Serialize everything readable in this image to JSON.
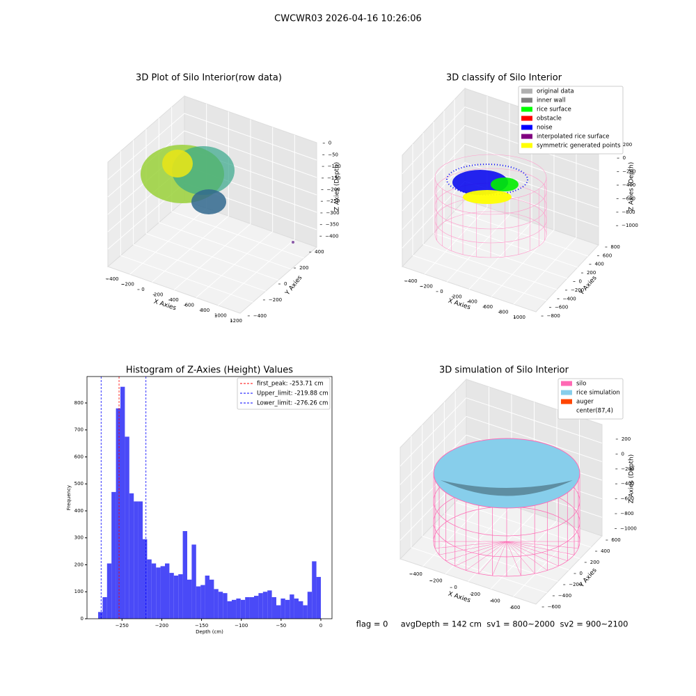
{
  "title": "CWCWR03 2026-04-16 10:26:06",
  "footer": "flag = 0     avgDepth = 142 cm  sv1 = 800~2000  sv2 = 900~2100",
  "chart_data": [
    {
      "type": "scatter3d",
      "title": "3D Plot of Silo Interior(row data)",
      "xlabel": "X Axies",
      "ylabel": "Y Axies",
      "zlabel": "Z Axies (Depth)",
      "xlim": [
        -480,
        1280
      ],
      "xticks": [
        {
          "value": -400,
          "label": "−400"
        },
        {
          "value": -200,
          "label": "−200"
        },
        0,
        200,
        400,
        600,
        800,
        1000,
        1200
      ],
      "ylim": [
        -480,
        480
      ],
      "yticks": [
        {
          "value": -400,
          "label": "−400"
        },
        {
          "value": -200,
          "label": "−200"
        },
        0,
        200,
        400
      ],
      "zlim": [
        -420,
        20
      ],
      "zticks": [
        0,
        {
          "value": -50,
          "label": "−50"
        },
        {
          "value": -100,
          "label": "−100"
        },
        {
          "value": -150,
          "label": "−150"
        },
        {
          "value": -200,
          "label": "−200"
        },
        {
          "value": -250,
          "label": "−250"
        },
        {
          "value": -300,
          "label": "−300"
        },
        {
          "value": -350,
          "label": "−350"
        },
        {
          "value": -400,
          "label": "−400"
        }
      ]
    },
    {
      "type": "scatter3d",
      "title": "3D classify of Silo Interior",
      "xlabel": "X Axies",
      "ylabel": "Y Axies",
      "zlabel": "Z Axies (Depth)",
      "xlim": [
        -480,
        1080
      ],
      "xticks": [
        {
          "value": -400,
          "label": "−400"
        },
        {
          "value": -200,
          "label": "−200"
        },
        0,
        200,
        400,
        600,
        800,
        1000
      ],
      "ylim": [
        -880,
        880
      ],
      "yticks": [
        {
          "value": -800,
          "label": "−800"
        },
        {
          "value": -600,
          "label": "−600"
        },
        {
          "value": -400,
          "label": "−400"
        },
        {
          "value": -200,
          "label": "−200"
        },
        0,
        200,
        400,
        600,
        800
      ],
      "zlim": [
        -1080,
        280
      ],
      "zticks": [
        200,
        0,
        {
          "value": -200,
          "label": "−200"
        },
        {
          "value": -400,
          "label": "−400"
        },
        {
          "value": -600,
          "label": "−600"
        },
        {
          "value": -800,
          "label": "−800"
        },
        {
          "value": -1000,
          "label": "−1000"
        }
      ],
      "legend": "upper right",
      "series": [
        {
          "name": "original data",
          "color": "#b0b0b0"
        },
        {
          "name": "inner wall",
          "color": "#808080"
        },
        {
          "name": "rice surface",
          "color": "#00ff00"
        },
        {
          "name": "obstacle",
          "color": "#ff0000"
        },
        {
          "name": "noise",
          "color": "#0000ff"
        },
        {
          "name": "interpolated rice surface",
          "color": "#800080"
        },
        {
          "name": "symmetric generated points",
          "color": "#ffff00"
        }
      ]
    },
    {
      "type": "histogram",
      "title": "Histogram of Z-Axies (Height) Values",
      "xlabel": "Depth (cm)",
      "ylabel": "Frequency",
      "color": "#4a4af7",
      "bins": [
        -280,
        -274.4,
        -268.8,
        -263.2,
        -257.6,
        -252,
        -246.4,
        -240.8,
        -235.2,
        -229.6,
        -224,
        -218.4,
        -212.8,
        -207.2,
        -201.6,
        -196,
        -190.4,
        -184.8,
        -179.2,
        -173.6,
        -168,
        -162.4,
        -156.8,
        -151.2,
        -145.6,
        -140,
        -134.4,
        -128.8,
        -123.2,
        -117.6,
        -112,
        -106.4,
        -100.8,
        -95.2,
        -89.6,
        -84,
        -78.4,
        -72.8,
        -67.2,
        -61.6,
        -56,
        -50.4,
        -44.8,
        -39.2,
        -33.6,
        -28,
        -22.4,
        -16.8,
        -11.2,
        -5.6,
        0
      ],
      "values": [
        25,
        80,
        205,
        470,
        780,
        860,
        675,
        465,
        435,
        435,
        295,
        220,
        205,
        190,
        195,
        205,
        170,
        160,
        165,
        325,
        145,
        275,
        120,
        125,
        160,
        145,
        110,
        100,
        95,
        65,
        70,
        75,
        70,
        80,
        80,
        85,
        95,
        100,
        105,
        80,
        50,
        75,
        70,
        90,
        75,
        65,
        50,
        100,
        213,
        155
      ],
      "xlim": [
        -294,
        14
      ],
      "xticks": [
        {
          "value": -250,
          "label": "−250"
        },
        {
          "value": -200,
          "label": "−200"
        },
        {
          "value": -150,
          "label": "−150"
        },
        {
          "value": -100,
          "label": "−100"
        },
        {
          "value": -50,
          "label": "−50"
        },
        0
      ],
      "ylim": [
        0,
        898
      ],
      "yticks": [
        0,
        100,
        200,
        300,
        400,
        500,
        600,
        700,
        800
      ],
      "legend": "upper right",
      "vlines": [
        {
          "label": "first_peak: -253.71 cm",
          "value": -253.71,
          "color": "#ff0000"
        },
        {
          "label": "Upper_limit: -219.88 cm",
          "value": -219.88,
          "color": "#0000ff"
        },
        {
          "label": "Lower_limit: -276.26 cm",
          "value": -276.26,
          "color": "#0000ff"
        }
      ]
    },
    {
      "type": "surface3d",
      "title": "3D simulation of Silo Interior",
      "xlabel": "X Axies",
      "ylabel": "Y Axies",
      "zlabel": "Z Axies (Depth)",
      "xlim": [
        -520,
        720
      ],
      "xticks": [
        {
          "value": -400,
          "label": "−400"
        },
        {
          "value": -200,
          "label": "−200"
        },
        0,
        200,
        400,
        600
      ],
      "ylim": [
        -700,
        700
      ],
      "yticks": [
        {
          "value": -600,
          "label": "−600"
        },
        {
          "value": -400,
          "label": "−400"
        },
        {
          "value": -200,
          "label": "−200"
        },
        0,
        200,
        400,
        600
      ],
      "zlim": [
        -1080,
        330
      ],
      "zticks": [
        200,
        0,
        {
          "value": -200,
          "label": "−200"
        },
        {
          "value": -400,
          "label": "−400"
        },
        {
          "value": -600,
          "label": "−600"
        },
        {
          "value": -800,
          "label": "−800"
        },
        {
          "value": -1000,
          "label": "−1000"
        }
      ],
      "legend": "upper right",
      "series": [
        {
          "name": "silo",
          "color": "#ff69b4"
        },
        {
          "name": "rice simulation",
          "color": "#87ceeb"
        },
        {
          "name": "auger",
          "color": "#ff4500"
        },
        {
          "name": "center(87,4)",
          "color": "#ffffff"
        }
      ]
    }
  ]
}
